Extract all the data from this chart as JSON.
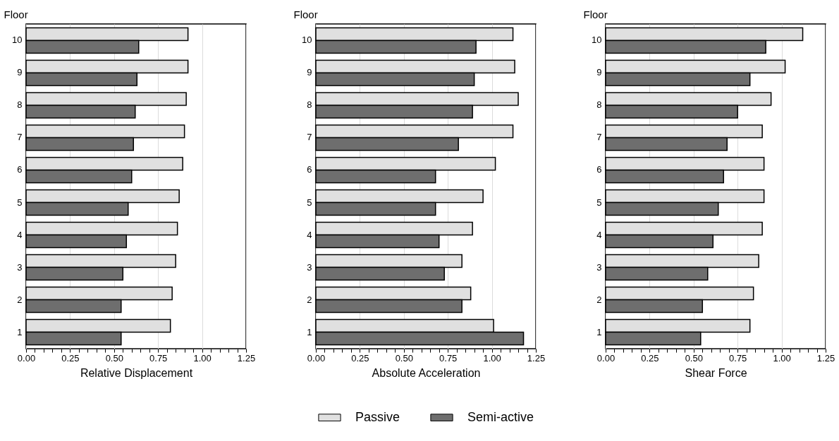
{
  "chart_data": [
    {
      "type": "bar",
      "orientation": "horizontal",
      "xlabel": "Relative Displacement",
      "ylabel": "Floor",
      "categories": [
        "10",
        "9",
        "8",
        "7",
        "6",
        "5",
        "4",
        "3",
        "2",
        "1"
      ],
      "series": [
        {
          "name": "Passive",
          "color": "#e0e0e0",
          "values": [
            0.92,
            0.92,
            0.91,
            0.9,
            0.89,
            0.87,
            0.86,
            0.85,
            0.83,
            0.82
          ]
        },
        {
          "name": "Semi-active",
          "color": "#6e6e6e",
          "values": [
            0.64,
            0.63,
            0.62,
            0.61,
            0.6,
            0.58,
            0.57,
            0.55,
            0.54,
            0.54
          ]
        }
      ],
      "xlim": [
        0,
        1.25
      ],
      "xticks": [
        {
          "value": 0,
          "label": "0.00"
        },
        {
          "value": 0.05,
          "label": null
        },
        {
          "value": 0.1,
          "label": null
        },
        {
          "value": 0.15,
          "label": null
        },
        {
          "value": 0.2,
          "label": null
        },
        {
          "value": 0.25,
          "label": "0.25"
        },
        {
          "value": 0.3,
          "label": null
        },
        {
          "value": 0.35,
          "label": null
        },
        {
          "value": 0.4,
          "label": null
        },
        {
          "value": 0.45,
          "label": null
        },
        {
          "value": 0.5,
          "label": "0.50"
        },
        {
          "value": 0.55,
          "label": null
        },
        {
          "value": 0.6,
          "label": null
        },
        {
          "value": 0.65,
          "label": null
        },
        {
          "value": 0.7,
          "label": null
        },
        {
          "value": 0.75,
          "label": "0.75"
        },
        {
          "value": 0.8,
          "label": null
        },
        {
          "value": 0.85,
          "label": null
        },
        {
          "value": 0.9,
          "label": null
        },
        {
          "value": 0.95,
          "label": null
        },
        {
          "value": 1,
          "label": "1.00"
        },
        {
          "value": 1.05,
          "label": null
        },
        {
          "value": 1.1,
          "label": null
        },
        {
          "value": 1.15,
          "label": null
        },
        {
          "value": 1.2,
          "label": null
        },
        {
          "value": 1.25,
          "label": "1.25"
        }
      ],
      "grid": "x",
      "legend": "bottom"
    },
    {
      "type": "bar",
      "orientation": "horizontal",
      "xlabel": "Absolute Acceleration",
      "ylabel": "Floor",
      "categories": [
        "10",
        "9",
        "8",
        "7",
        "6",
        "5",
        "4",
        "3",
        "2",
        "1"
      ],
      "series": [
        {
          "name": "Passive",
          "color": "#e0e0e0",
          "values": [
            1.12,
            1.13,
            1.15,
            1.12,
            1.02,
            0.95,
            0.89,
            0.83,
            0.88,
            1.01
          ]
        },
        {
          "name": "Semi-active",
          "color": "#6e6e6e",
          "values": [
            0.91,
            0.9,
            0.89,
            0.81,
            0.68,
            0.68,
            0.7,
            0.73,
            0.83,
            1.18
          ]
        }
      ],
      "xlim": [
        0,
        1.25
      ],
      "xticks": [
        {
          "value": 0,
          "label": "0.00"
        },
        {
          "value": 0.05,
          "label": null
        },
        {
          "value": 0.1,
          "label": null
        },
        {
          "value": 0.15,
          "label": null
        },
        {
          "value": 0.2,
          "label": null
        },
        {
          "value": 0.25,
          "label": "0.25"
        },
        {
          "value": 0.3,
          "label": null
        },
        {
          "value": 0.35,
          "label": null
        },
        {
          "value": 0.4,
          "label": null
        },
        {
          "value": 0.45,
          "label": null
        },
        {
          "value": 0.5,
          "label": "0.50"
        },
        {
          "value": 0.55,
          "label": null
        },
        {
          "value": 0.6,
          "label": null
        },
        {
          "value": 0.65,
          "label": null
        },
        {
          "value": 0.7,
          "label": null
        },
        {
          "value": 0.75,
          "label": "0.75"
        },
        {
          "value": 0.8,
          "label": null
        },
        {
          "value": 0.85,
          "label": null
        },
        {
          "value": 0.9,
          "label": null
        },
        {
          "value": 0.95,
          "label": null
        },
        {
          "value": 1,
          "label": "1.00"
        },
        {
          "value": 1.05,
          "label": null
        },
        {
          "value": 1.1,
          "label": null
        },
        {
          "value": 1.15,
          "label": null
        },
        {
          "value": 1.2,
          "label": null
        },
        {
          "value": 1.25,
          "label": "1.25"
        }
      ],
      "grid": "x",
      "legend": "bottom"
    },
    {
      "type": "bar",
      "orientation": "horizontal",
      "xlabel": "Shear Force",
      "ylabel": "Floor",
      "categories": [
        "10",
        "9",
        "8",
        "7",
        "6",
        "5",
        "4",
        "3",
        "2",
        "1"
      ],
      "series": [
        {
          "name": "Passive",
          "color": "#e0e0e0",
          "values": [
            1.12,
            1.02,
            0.94,
            0.89,
            0.9,
            0.9,
            0.89,
            0.87,
            0.84,
            0.82
          ]
        },
        {
          "name": "Semi-active",
          "color": "#6e6e6e",
          "values": [
            0.91,
            0.82,
            0.75,
            0.69,
            0.67,
            0.64,
            0.61,
            0.58,
            0.55,
            0.54
          ]
        }
      ],
      "xlim": [
        0,
        1.25
      ],
      "xticks": [
        {
          "value": 0,
          "label": "0.00"
        },
        {
          "value": 0.05,
          "label": null
        },
        {
          "value": 0.1,
          "label": null
        },
        {
          "value": 0.15,
          "label": null
        },
        {
          "value": 0.2,
          "label": null
        },
        {
          "value": 0.25,
          "label": "0.25"
        },
        {
          "value": 0.3,
          "label": null
        },
        {
          "value": 0.35,
          "label": null
        },
        {
          "value": 0.4,
          "label": null
        },
        {
          "value": 0.45,
          "label": null
        },
        {
          "value": 0.5,
          "label": "0.50"
        },
        {
          "value": 0.55,
          "label": null
        },
        {
          "value": 0.6,
          "label": null
        },
        {
          "value": 0.65,
          "label": null
        },
        {
          "value": 0.7,
          "label": null
        },
        {
          "value": 0.75,
          "label": "0.75"
        },
        {
          "value": 0.8,
          "label": null
        },
        {
          "value": 0.85,
          "label": null
        },
        {
          "value": 0.9,
          "label": null
        },
        {
          "value": 0.95,
          "label": null
        },
        {
          "value": 1,
          "label": "1.00"
        },
        {
          "value": 1.05,
          "label": null
        },
        {
          "value": 1.1,
          "label": null
        },
        {
          "value": 1.15,
          "label": null
        },
        {
          "value": 1.2,
          "label": null
        },
        {
          "value": 1.25,
          "label": "1.25"
        }
      ],
      "grid": "x",
      "legend": "bottom"
    }
  ]
}
